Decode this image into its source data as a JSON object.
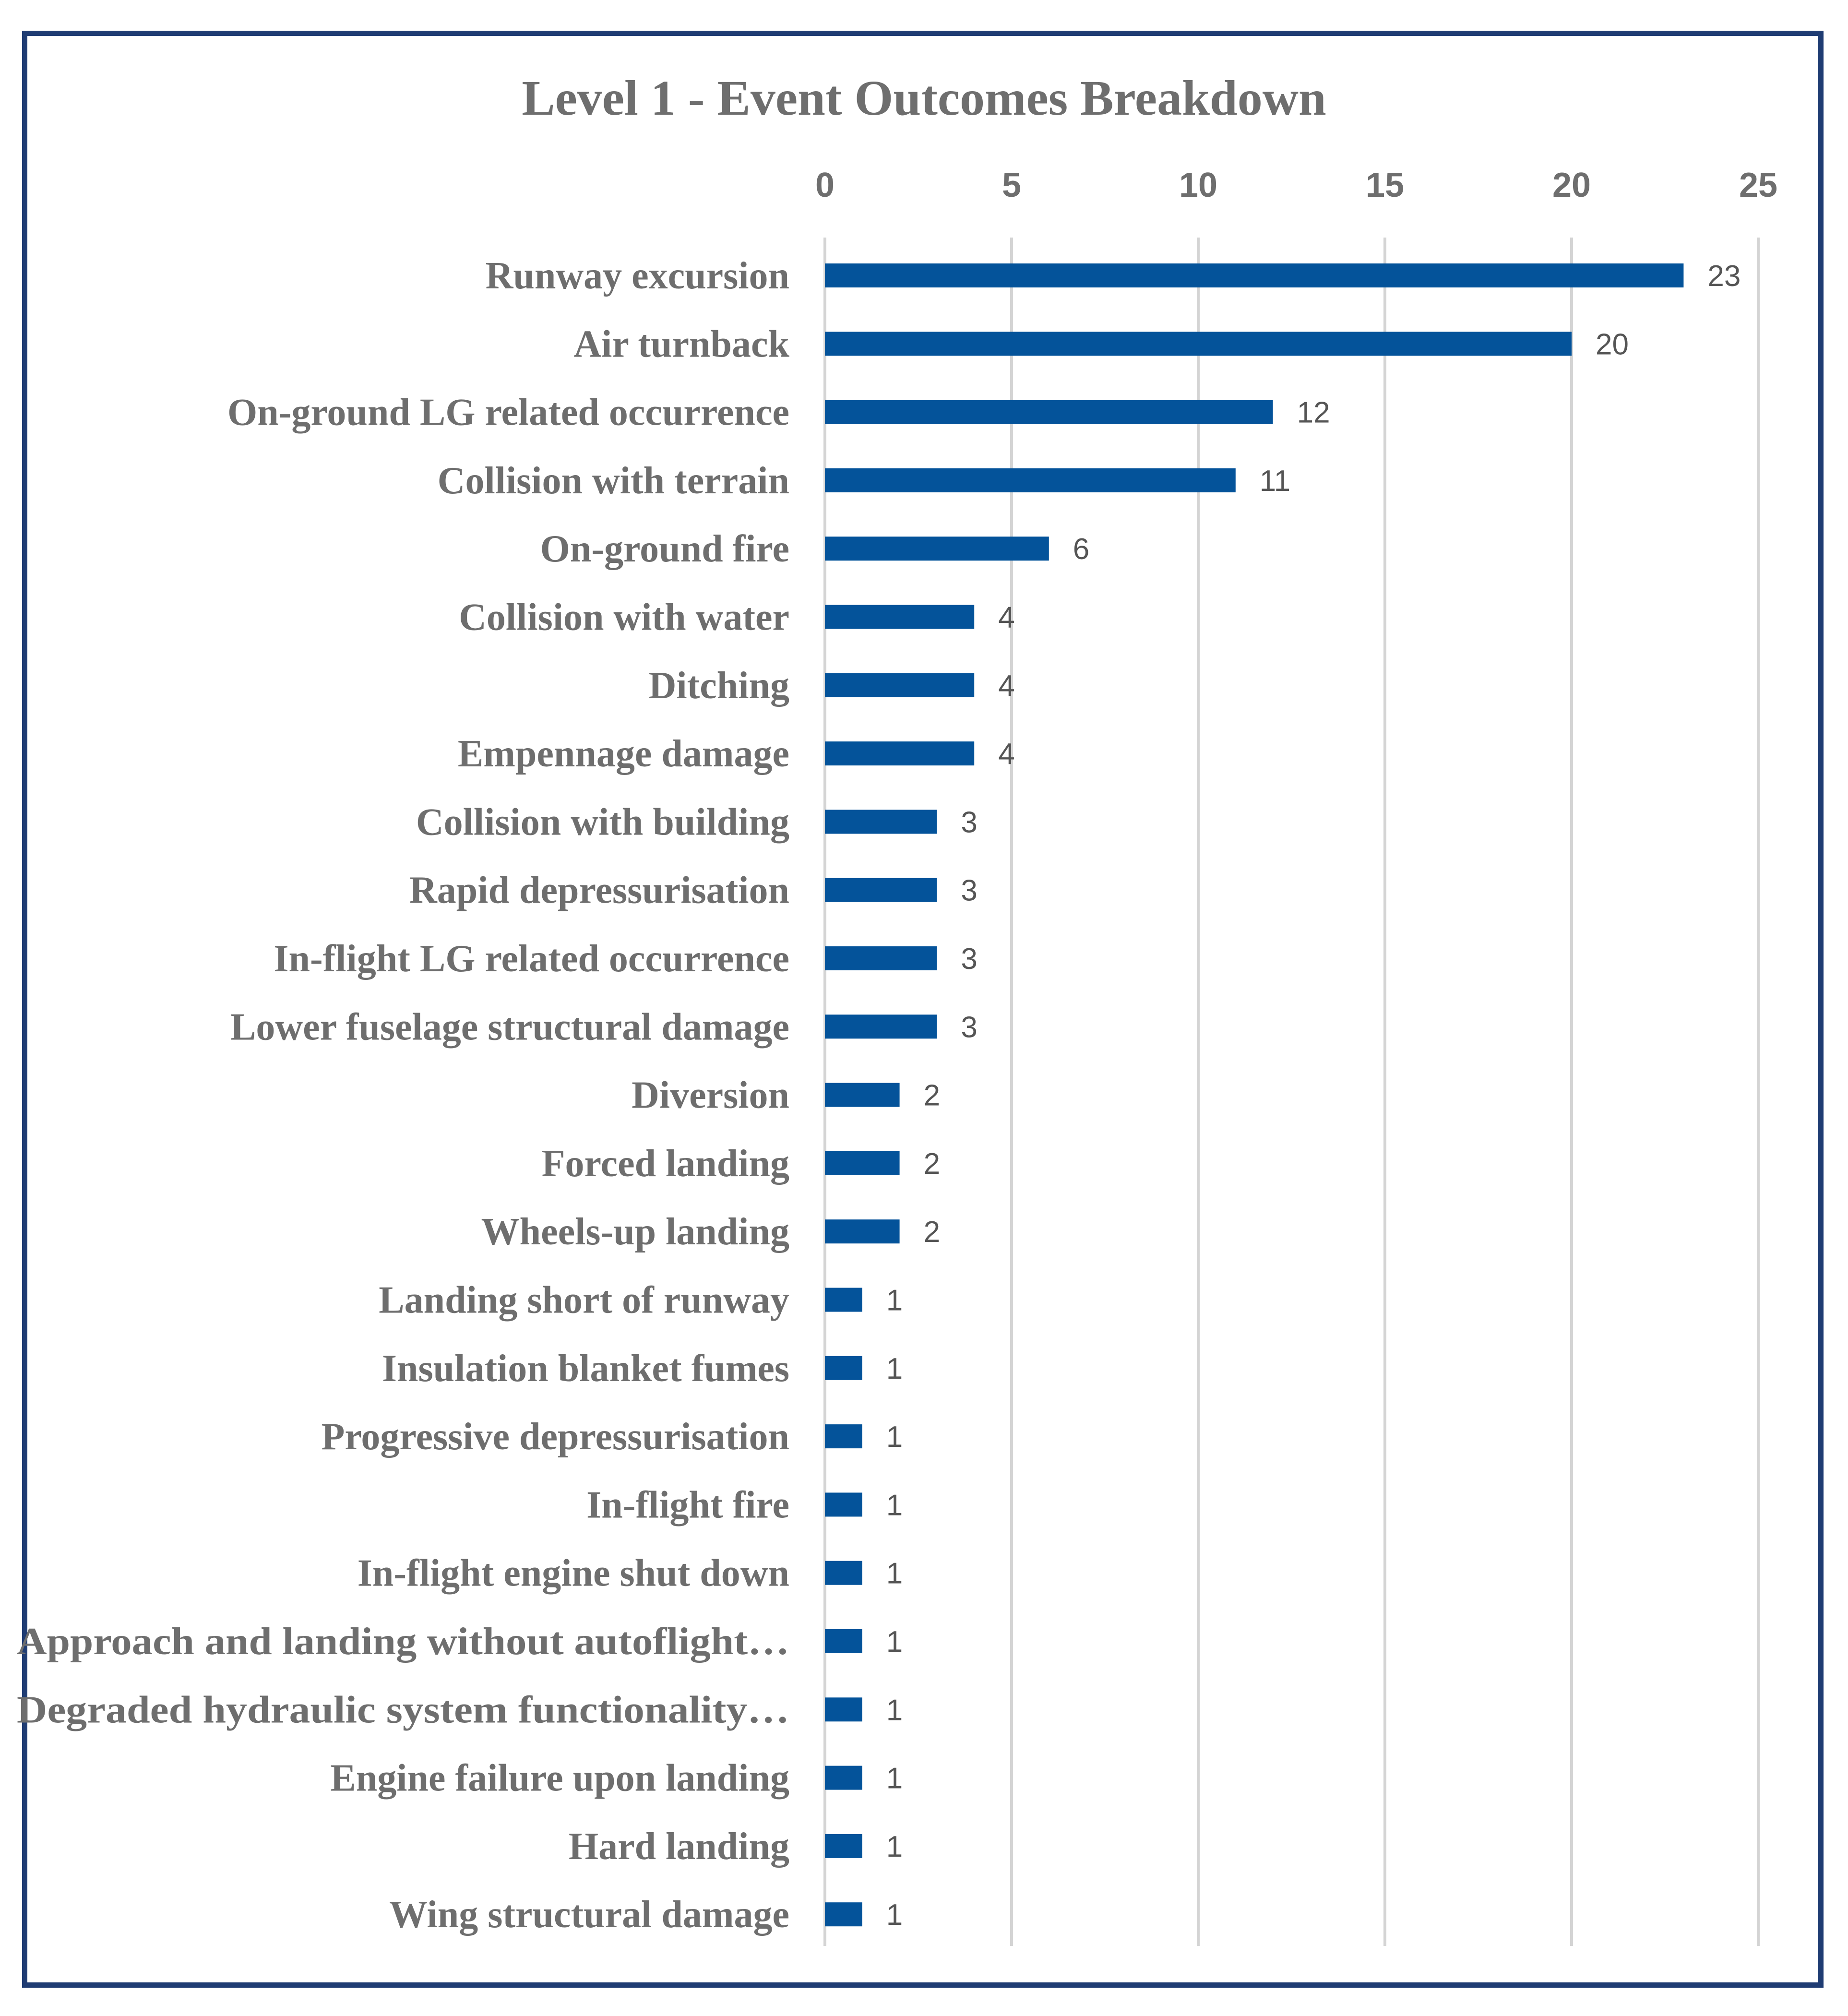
{
  "chart_data": {
    "type": "bar",
    "orientation": "horizontal",
    "title": "Level 1 - Event Outcomes Breakdown",
    "xlabel": "",
    "ylabel": "",
    "xlim": [
      0,
      25
    ],
    "x_ticks": [
      0,
      5,
      10,
      15,
      20,
      25
    ],
    "x_axis_position": "top",
    "grid": true,
    "legend": "none",
    "color": "#04539a",
    "categories": [
      "Runway excursion",
      "Air turnback",
      "On-ground LG related occurrence",
      "Collision with terrain",
      "On-ground fire",
      "Collision with water",
      "Ditching",
      "Empennage damage",
      "Collision with building",
      "Rapid depressurisation",
      "In-flight LG related occurrence",
      "Lower fuselage structural damage",
      "Diversion",
      "Forced landing",
      "Wheels-up landing",
      "Landing short of runway",
      "Insulation blanket fumes",
      "Progressive depressurisation",
      "In-flight fire",
      "In-flight engine shut down",
      "Approach and landing without autoflight…",
      "Degraded hydraulic system functionality…",
      "Engine failure upon landing",
      "Hard landing",
      "Wing structural damage"
    ],
    "values": [
      23,
      20,
      12,
      11,
      6,
      4,
      4,
      4,
      3,
      3,
      3,
      3,
      2,
      2,
      2,
      1,
      1,
      1,
      1,
      1,
      1,
      1,
      1,
      1,
      1
    ]
  }
}
